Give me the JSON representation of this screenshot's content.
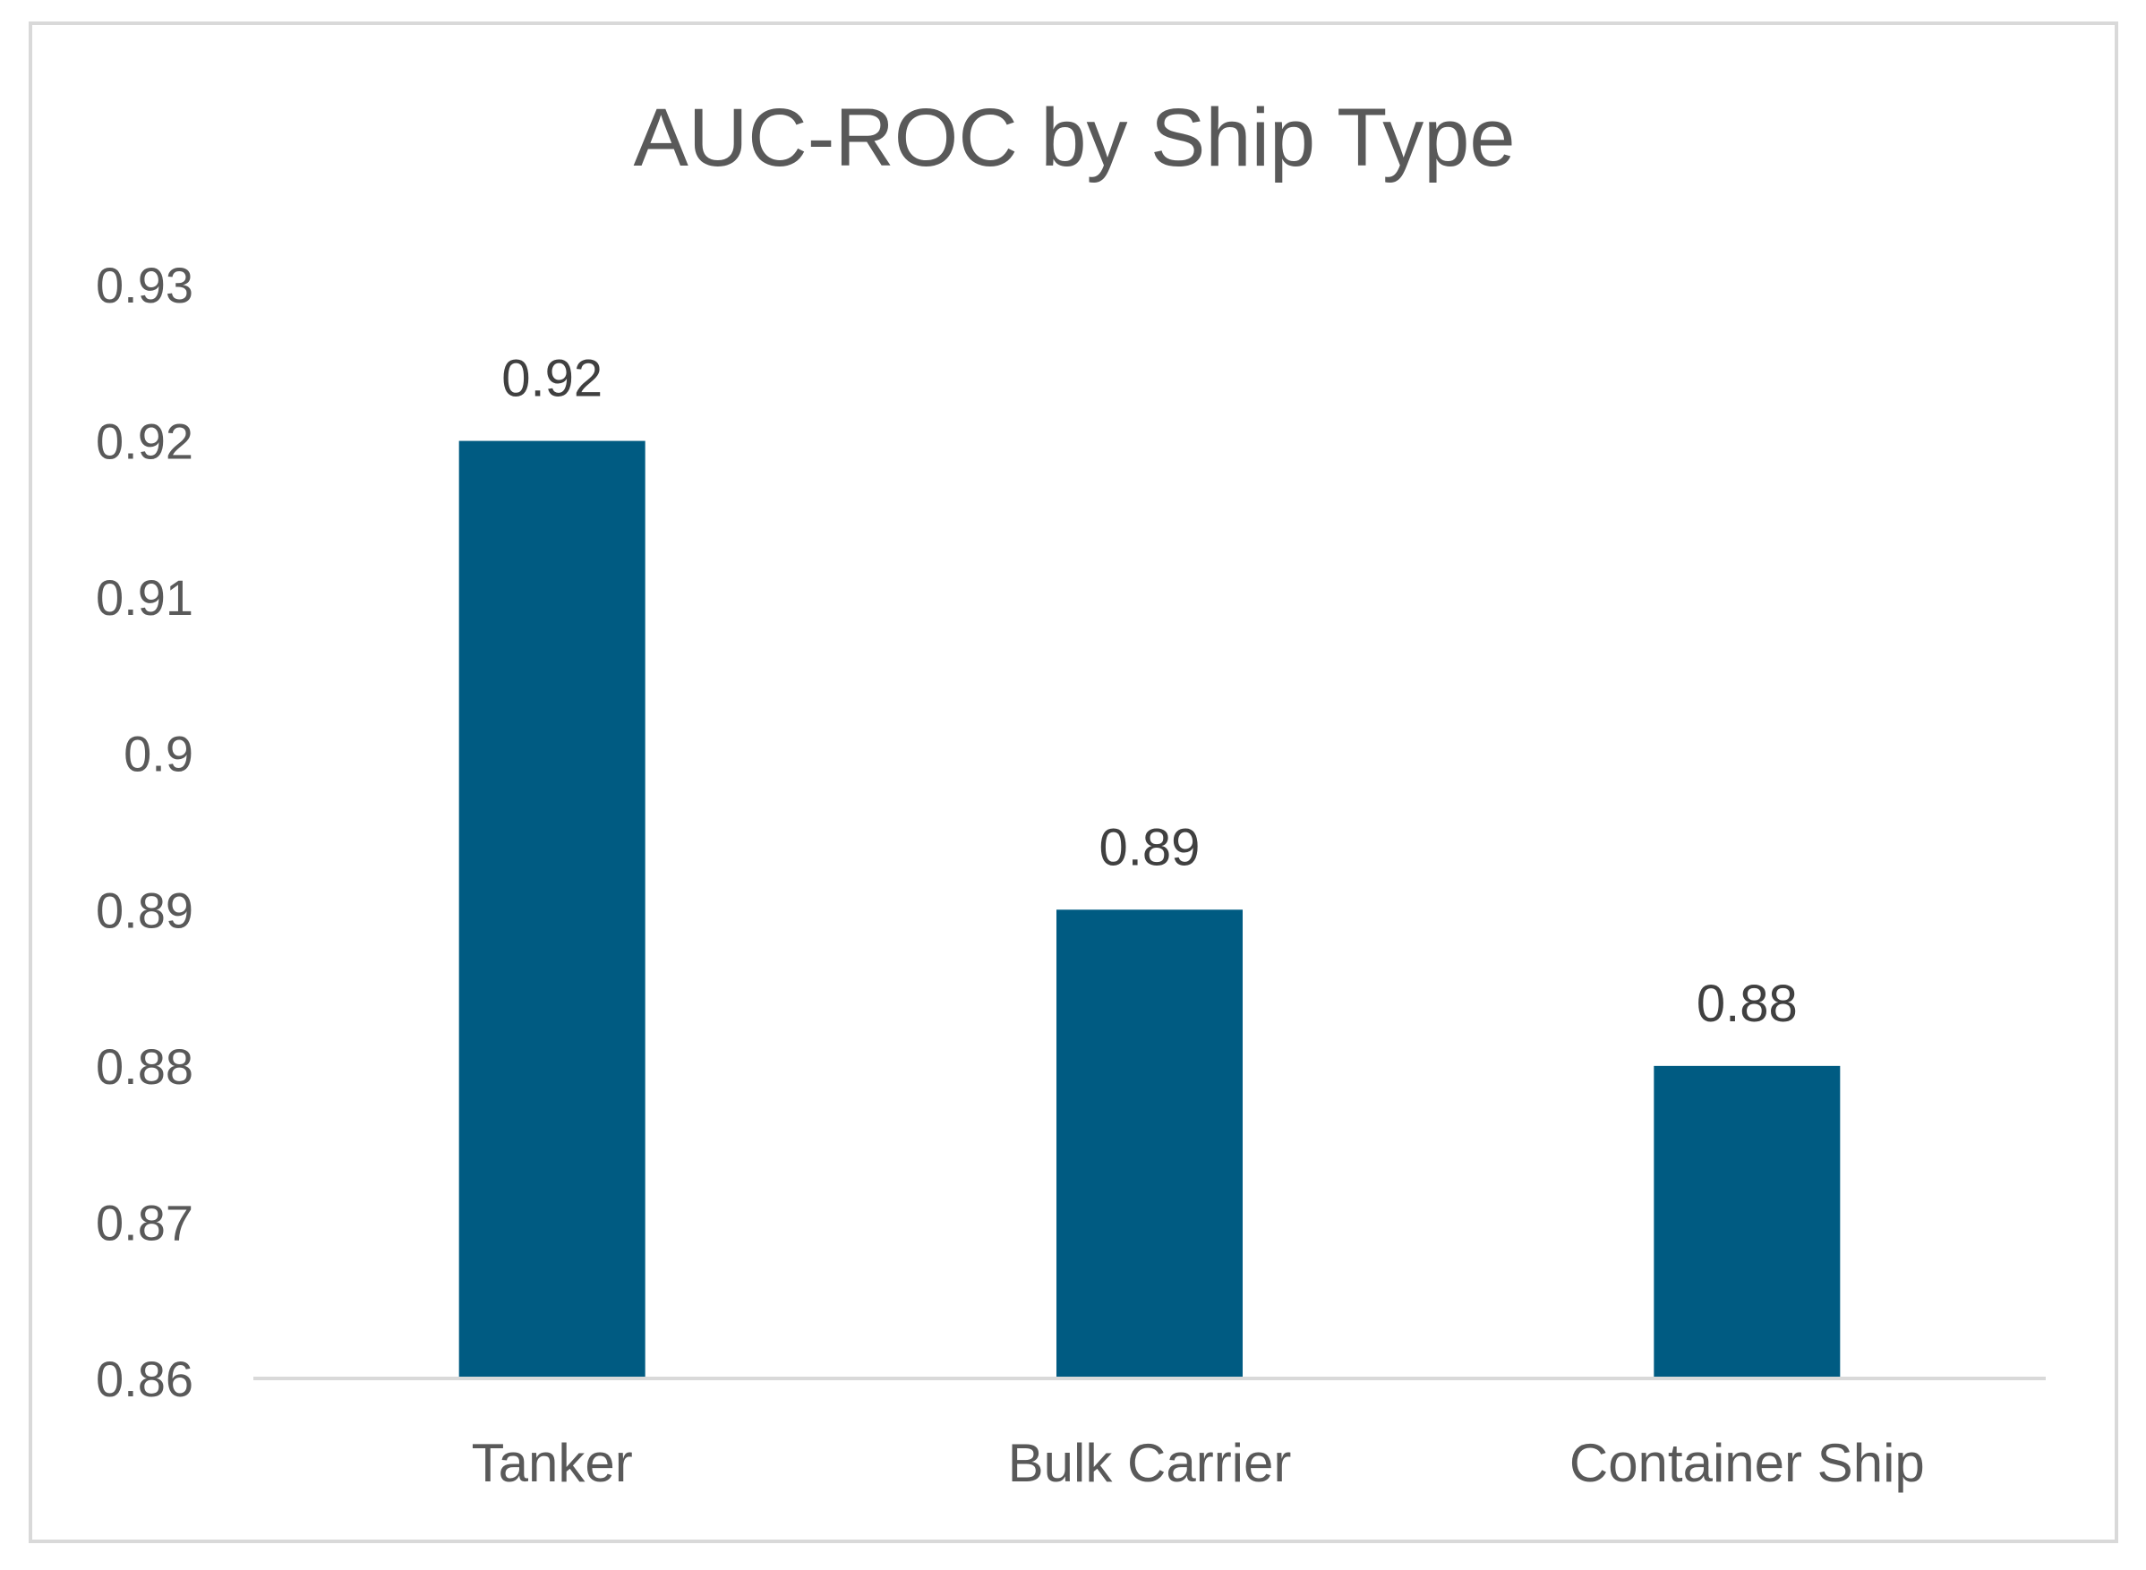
{
  "chart_data": {
    "type": "bar",
    "title": "AUC-ROC by Ship Type",
    "xlabel": "",
    "ylabel": "",
    "categories": [
      "Tanker",
      "Bulk Carrier",
      "Container Ship"
    ],
    "series": [
      {
        "values": [
          0.92,
          0.89,
          0.88
        ],
        "color": "#005b82"
      }
    ],
    "data_labels": [
      "0.92",
      "0.89",
      "0.88"
    ],
    "ylim": [
      0.86,
      0.93
    ],
    "yticks": [
      0.86,
      0.87,
      0.88,
      0.89,
      0.9,
      0.91,
      0.92,
      0.93
    ],
    "ytick_labels": [
      "0.86",
      "0.87",
      "0.88",
      "0.89",
      "0.9",
      "0.91",
      "0.92",
      "0.93"
    ],
    "grid": false,
    "legend": "none"
  }
}
